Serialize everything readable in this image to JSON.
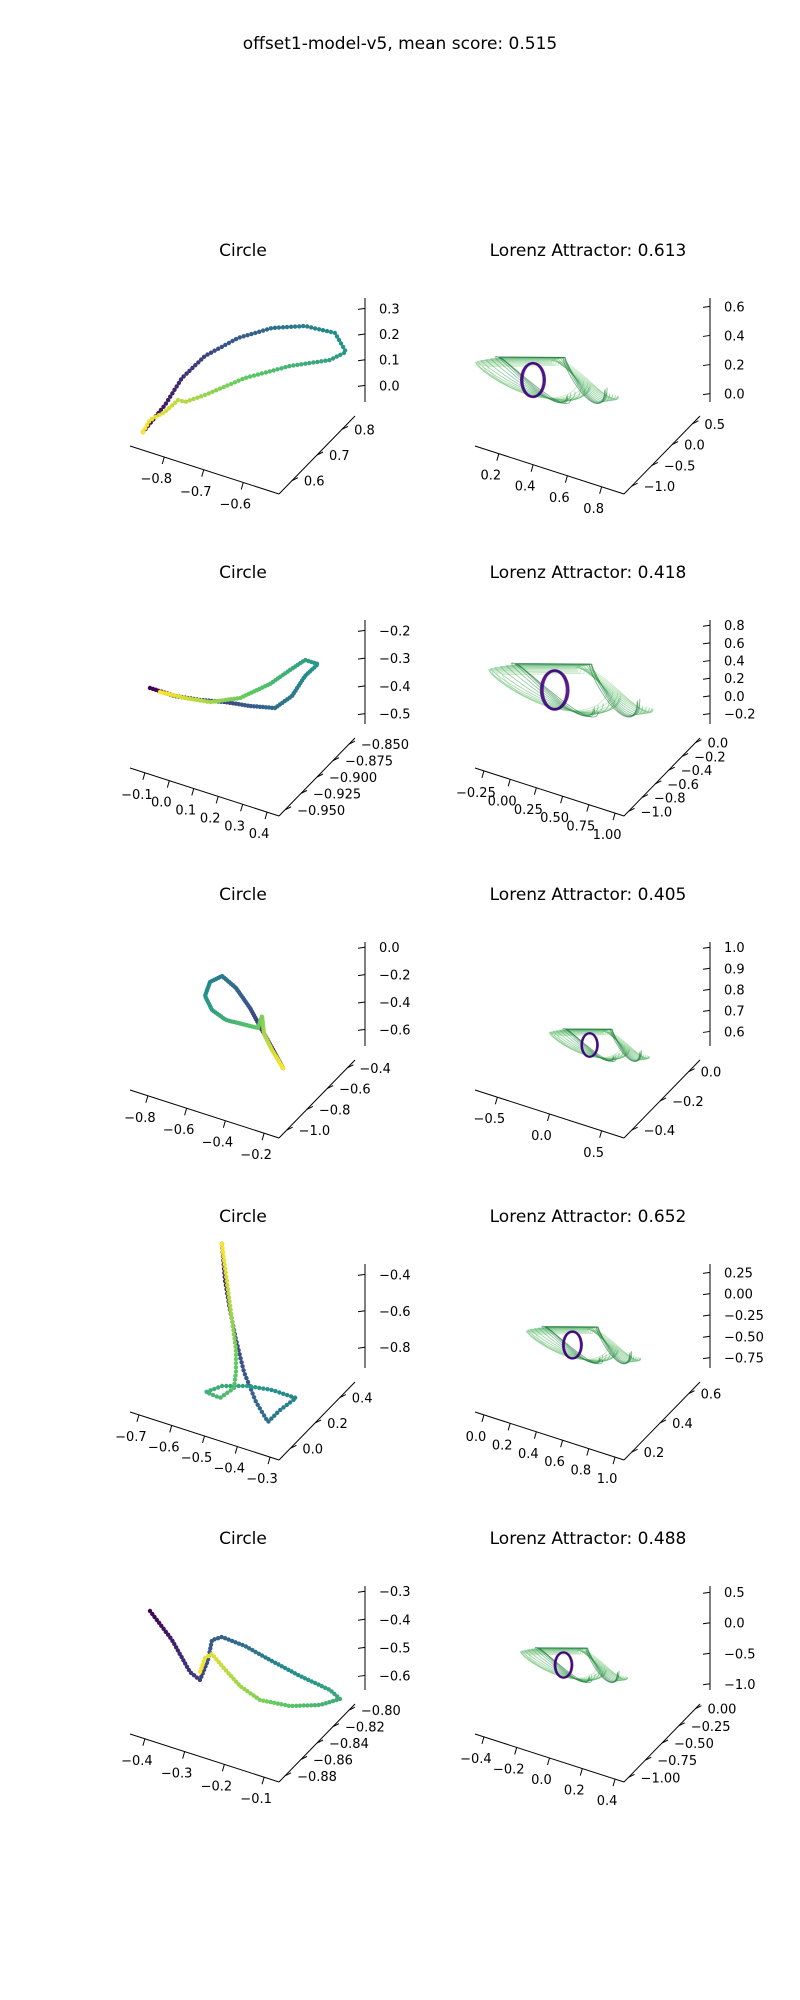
{
  "figure": {
    "title": "offset1-model-v5, mean score: 0.515"
  },
  "colormaps": {
    "viridis": [
      "#440154",
      "#3b528b",
      "#21908d",
      "#5dc963",
      "#fde725"
    ],
    "greens": [
      "#e8f5e4",
      "#a1d99b",
      "#41ab5d",
      "#00441b"
    ],
    "purple_core": "#3f007d"
  },
  "chart_data": [
    {
      "type": "scatter",
      "projection": "3d",
      "title": "Circle",
      "axes": {
        "x": {
          "ticks": [
            "−0.8",
            "−0.7",
            "−0.6"
          ]
        },
        "y": {
          "ticks": [
            "0.6",
            "0.7",
            "0.8"
          ]
        },
        "z": {
          "ticks": [
            "0.0",
            "0.1",
            "0.2",
            "0.3"
          ]
        }
      }
    },
    {
      "type": "line",
      "projection": "3d",
      "title": "Lorenz Attractor: 0.613",
      "score": 0.613,
      "axes": {
        "x": {
          "ticks": [
            "0.2",
            "0.4",
            "0.6",
            "0.8"
          ]
        },
        "y": {
          "ticks": [
            "−1.0",
            "−0.5",
            "0.0",
            "0.5"
          ]
        },
        "z": {
          "ticks": [
            "0.0",
            "0.2",
            "0.4",
            "0.6"
          ]
        }
      }
    },
    {
      "type": "scatter",
      "projection": "3d",
      "title": "Circle",
      "axes": {
        "x": {
          "ticks": [
            "−0.1",
            "0.0",
            "0.1",
            "0.2",
            "0.3",
            "0.4"
          ]
        },
        "y": {
          "ticks": [
            "−0.950",
            "−0.925",
            "−0.900",
            "−0.875",
            "−0.850"
          ]
        },
        "z": {
          "ticks": [
            "−0.5",
            "−0.4",
            "−0.3",
            "−0.2"
          ]
        }
      }
    },
    {
      "type": "line",
      "projection": "3d",
      "title": "Lorenz Attractor: 0.418",
      "score": 0.418,
      "axes": {
        "x": {
          "ticks": [
            "−0.25",
            "0.00",
            "0.25",
            "0.50",
            "0.75",
            "1.00"
          ]
        },
        "y": {
          "ticks": [
            "−1.0",
            "−0.8",
            "−0.6",
            "−0.4",
            "−0.2",
            "0.0"
          ]
        },
        "z": {
          "ticks": [
            "−0.2",
            "0.0",
            "0.2",
            "0.4",
            "0.6",
            "0.8"
          ]
        }
      }
    },
    {
      "type": "scatter",
      "projection": "3d",
      "title": "Circle",
      "axes": {
        "x": {
          "ticks": [
            "−0.8",
            "−0.6",
            "−0.4",
            "−0.2"
          ]
        },
        "y": {
          "ticks": [
            "−1.0",
            "−0.8",
            "−0.6",
            "−0.4"
          ]
        },
        "z": {
          "ticks": [
            "−0.6",
            "−0.4",
            "−0.2",
            "0.0"
          ]
        }
      }
    },
    {
      "type": "line",
      "projection": "3d",
      "title": "Lorenz Attractor: 0.405",
      "score": 0.405,
      "axes": {
        "x": {
          "ticks": [
            "−0.5",
            "0.0",
            "0.5"
          ]
        },
        "y": {
          "ticks": [
            "−0.4",
            "−0.2",
            "0.0"
          ]
        },
        "z": {
          "ticks": [
            "0.6",
            "0.7",
            "0.8",
            "0.9",
            "1.0"
          ]
        }
      }
    },
    {
      "type": "scatter",
      "projection": "3d",
      "title": "Circle",
      "axes": {
        "x": {
          "ticks": [
            "−0.7",
            "−0.6",
            "−0.5",
            "−0.4",
            "−0.3"
          ]
        },
        "y": {
          "ticks": [
            "0.0",
            "0.2",
            "0.4"
          ]
        },
        "z": {
          "ticks": [
            "−0.8",
            "−0.6",
            "−0.4"
          ]
        }
      }
    },
    {
      "type": "line",
      "projection": "3d",
      "title": "Lorenz Attractor: 0.652",
      "score": 0.652,
      "axes": {
        "x": {
          "ticks": [
            "0.0",
            "0.2",
            "0.4",
            "0.6",
            "0.8",
            "1.0"
          ]
        },
        "y": {
          "ticks": [
            "0.2",
            "0.4",
            "0.6"
          ]
        },
        "z": {
          "ticks": [
            "−0.75",
            "−0.50",
            "−0.25",
            "0.00",
            "0.25"
          ]
        }
      }
    },
    {
      "type": "scatter",
      "projection": "3d",
      "title": "Circle",
      "axes": {
        "x": {
          "ticks": [
            "−0.4",
            "−0.3",
            "−0.2",
            "−0.1"
          ]
        },
        "y": {
          "ticks": [
            "−0.88",
            "−0.86",
            "−0.84",
            "−0.82",
            "−0.80"
          ]
        },
        "z": {
          "ticks": [
            "−0.6",
            "−0.5",
            "−0.4",
            "−0.3"
          ]
        }
      }
    },
    {
      "type": "line",
      "projection": "3d",
      "title": "Lorenz Attractor: 0.488",
      "score": 0.488,
      "axes": {
        "x": {
          "ticks": [
            "−0.4",
            "−0.2",
            "0.0",
            "0.2",
            "0.4"
          ]
        },
        "y": {
          "ticks": [
            "−1.00",
            "−0.75",
            "−0.50",
            "−0.25",
            "0.00"
          ]
        },
        "z": {
          "ticks": [
            "−1.0",
            "−0.5",
            "0.0",
            "0.5"
          ]
        }
      }
    }
  ]
}
